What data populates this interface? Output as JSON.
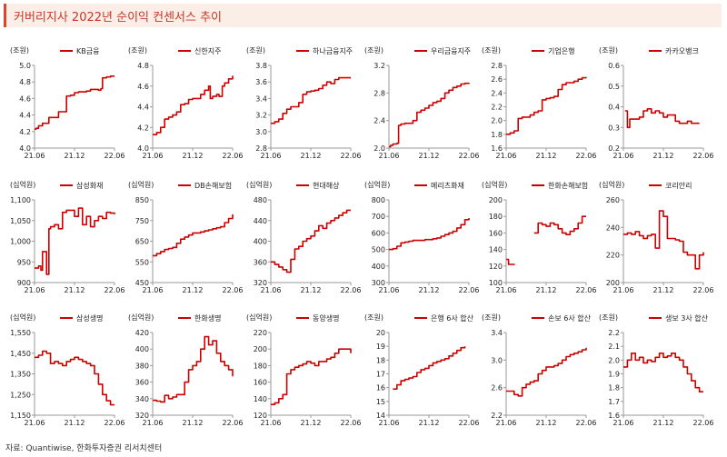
{
  "title": "커버리지사 2022년 순이익 컨센서스 추이",
  "source": "자료: Quantiwise, 한화투자증권 리서치센터",
  "colors": {
    "line": "#cc0000",
    "title_text": "#c7372a",
    "title_bg": "#fbeee6",
    "accent": "#d8462b",
    "axis": "#9a9a9a",
    "text": "#222222"
  },
  "chart_data": [
    {
      "type": "line",
      "name": "KB금융",
      "unit": "(조원)",
      "xticks": [
        "21.06",
        "21.12",
        "22.06"
      ],
      "ylim": [
        4.0,
        5.0
      ],
      "yticks": [
        "4.0",
        "4.2",
        "4.4",
        "4.6",
        "4.8",
        "5.0"
      ],
      "x": [
        0,
        0.02,
        0.05,
        0.1,
        0.18,
        0.22,
        0.25,
        0.3,
        0.4,
        0.45,
        0.5,
        0.55,
        0.6,
        0.65,
        0.7,
        0.75,
        0.8,
        0.83,
        0.85,
        0.9,
        0.95,
        1.0
      ],
      "y": [
        4.23,
        4.24,
        4.27,
        4.3,
        4.37,
        4.37,
        4.37,
        4.44,
        4.63,
        4.64,
        4.67,
        4.68,
        4.68,
        4.69,
        4.71,
        4.71,
        4.7,
        4.72,
        4.85,
        4.86,
        4.87,
        4.87
      ]
    },
    {
      "type": "line",
      "name": "신한지주",
      "unit": "(조원)",
      "xticks": [
        "21.06",
        "21.12",
        "22.06"
      ],
      "ylim": [
        4.0,
        4.8
      ],
      "yticks": [
        "4.0",
        "4.2",
        "4.4",
        "4.6",
        "4.8"
      ],
      "x": [
        0,
        0.05,
        0.1,
        0.15,
        0.2,
        0.25,
        0.3,
        0.35,
        0.4,
        0.45,
        0.5,
        0.55,
        0.6,
        0.65,
        0.7,
        0.72,
        0.75,
        0.8,
        0.83,
        0.87,
        0.9,
        0.95,
        1.0
      ],
      "y": [
        4.13,
        4.15,
        4.2,
        4.28,
        4.3,
        4.32,
        4.35,
        4.42,
        4.43,
        4.47,
        4.48,
        4.48,
        4.52,
        4.56,
        4.6,
        4.48,
        4.5,
        4.52,
        4.5,
        4.6,
        4.63,
        4.67,
        4.7
      ]
    },
    {
      "type": "line",
      "name": "하나금융지주",
      "unit": "(조원)",
      "xticks": [
        "21.06",
        "21.12",
        "22.06"
      ],
      "ylim": [
        2.8,
        3.8
      ],
      "yticks": [
        "2.8",
        "3.0",
        "3.2",
        "3.4",
        "3.6",
        "3.8"
      ],
      "x": [
        0,
        0.05,
        0.1,
        0.15,
        0.2,
        0.25,
        0.3,
        0.35,
        0.4,
        0.45,
        0.5,
        0.55,
        0.6,
        0.65,
        0.7,
        0.75,
        0.8,
        0.85,
        0.9,
        0.95,
        1.0
      ],
      "y": [
        3.1,
        3.12,
        3.15,
        3.22,
        3.27,
        3.3,
        3.3,
        3.35,
        3.45,
        3.48,
        3.49,
        3.5,
        3.52,
        3.56,
        3.6,
        3.58,
        3.63,
        3.65,
        3.65,
        3.65,
        3.65
      ]
    },
    {
      "type": "line",
      "name": "우리금융지주",
      "unit": "(조원)",
      "xticks": [
        "21.06",
        "21.12",
        "22.06"
      ],
      "ylim": [
        2.0,
        3.2
      ],
      "yticks": [
        "2.0",
        "2.4",
        "2.8",
        "3.2"
      ],
      "x": [
        0,
        0.02,
        0.05,
        0.1,
        0.12,
        0.15,
        0.2,
        0.3,
        0.35,
        0.4,
        0.45,
        0.5,
        0.55,
        0.6,
        0.65,
        0.7,
        0.75,
        0.8,
        0.85,
        0.9,
        0.95,
        1.0
      ],
      "y": [
        2.02,
        2.04,
        2.06,
        2.07,
        2.33,
        2.35,
        2.36,
        2.4,
        2.52,
        2.55,
        2.58,
        2.62,
        2.66,
        2.68,
        2.72,
        2.8,
        2.84,
        2.88,
        2.9,
        2.93,
        2.94,
        2.95
      ]
    },
    {
      "type": "line",
      "name": "기업은행",
      "unit": "(조원)",
      "xticks": [
        "21.06",
        "21.12",
        "22.06"
      ],
      "ylim": [
        1.6,
        2.8
      ],
      "yticks": [
        "1.6",
        "1.8",
        "2.0",
        "2.2",
        "2.4",
        "2.6",
        "2.8"
      ],
      "x": [
        0,
        0.05,
        0.1,
        0.15,
        0.2,
        0.25,
        0.3,
        0.35,
        0.4,
        0.45,
        0.5,
        0.55,
        0.6,
        0.65,
        0.7,
        0.75,
        0.8,
        0.85,
        0.9,
        0.95,
        1.0
      ],
      "y": [
        1.8,
        1.82,
        1.85,
        2.03,
        2.05,
        2.05,
        2.08,
        2.12,
        2.14,
        2.3,
        2.32,
        2.33,
        2.35,
        2.45,
        2.52,
        2.55,
        2.55,
        2.57,
        2.6,
        2.62,
        2.63
      ]
    },
    {
      "type": "line",
      "name": "카카오뱅크",
      "unit": "(조원)",
      "xticks": [
        "21.06",
        "21.12",
        "22.06"
      ],
      "ylim": [
        0.2,
        0.6
      ],
      "yticks": [
        "0.2",
        "0.3",
        "0.4",
        "0.5",
        "0.6"
      ],
      "x": [
        0.02,
        0.05,
        0.08,
        0.1,
        0.15,
        0.2,
        0.25,
        0.3,
        0.35,
        0.4,
        0.45,
        0.5,
        0.55,
        0.6,
        0.65,
        0.7,
        0.75,
        0.8,
        0.85,
        0.9,
        0.95
      ],
      "y": [
        0.38,
        0.3,
        0.34,
        0.34,
        0.34,
        0.35,
        0.38,
        0.39,
        0.37,
        0.38,
        0.37,
        0.35,
        0.36,
        0.36,
        0.33,
        0.32,
        0.32,
        0.33,
        0.32,
        0.32,
        0.32
      ]
    },
    {
      "type": "line",
      "name": "삼성화재",
      "unit": "(십억원)",
      "xticks": [
        "21.06",
        "21.12",
        "22.06"
      ],
      "ylim": [
        900,
        1100
      ],
      "yticks": [
        "900",
        "950",
        "1,000",
        "1,050",
        "1,100"
      ],
      "x": [
        0,
        0.05,
        0.08,
        0.1,
        0.15,
        0.18,
        0.2,
        0.25,
        0.3,
        0.35,
        0.4,
        0.45,
        0.5,
        0.55,
        0.6,
        0.65,
        0.7,
        0.75,
        0.8,
        0.85,
        0.9,
        0.95,
        1.0
      ],
      "y": [
        935,
        940,
        930,
        975,
        920,
        1030,
        1035,
        1040,
        1030,
        1070,
        1075,
        1075,
        1060,
        1080,
        1040,
        1060,
        1035,
        1050,
        1060,
        1055,
        1070,
        1068,
        1065
      ]
    },
    {
      "type": "line",
      "name": "DB손해보험",
      "unit": "(십억원)",
      "xticks": [
        "21.06",
        "21.12",
        "22.06"
      ],
      "ylim": [
        450,
        850
      ],
      "yticks": [
        "450",
        "550",
        "650",
        "750",
        "850"
      ],
      "x": [
        0,
        0.05,
        0.1,
        0.15,
        0.2,
        0.25,
        0.3,
        0.35,
        0.4,
        0.45,
        0.5,
        0.55,
        0.6,
        0.65,
        0.7,
        0.75,
        0.8,
        0.85,
        0.9,
        0.95,
        1.0
      ],
      "y": [
        580,
        590,
        600,
        610,
        615,
        620,
        640,
        660,
        670,
        680,
        690,
        690,
        695,
        700,
        705,
        710,
        715,
        720,
        740,
        760,
        780
      ]
    },
    {
      "type": "line",
      "name": "현대해상",
      "unit": "(십억원)",
      "xticks": [
        "21.06",
        "21.12",
        "22.06"
      ],
      "ylim": [
        320,
        480
      ],
      "yticks": [
        "320",
        "360",
        "400",
        "440",
        "480"
      ],
      "x": [
        0,
        0.05,
        0.1,
        0.15,
        0.2,
        0.25,
        0.3,
        0.35,
        0.4,
        0.45,
        0.5,
        0.55,
        0.6,
        0.65,
        0.7,
        0.75,
        0.8,
        0.85,
        0.9,
        0.95,
        1.0
      ],
      "y": [
        360,
        355,
        350,
        345,
        340,
        365,
        385,
        390,
        400,
        405,
        410,
        420,
        430,
        425,
        435,
        440,
        445,
        450,
        455,
        460,
        460
      ]
    },
    {
      "type": "line",
      "name": "메리츠화재",
      "unit": "(십억원)",
      "xticks": [
        "21.06",
        "21.12",
        "22.06"
      ],
      "ylim": [
        300,
        800
      ],
      "yticks": [
        "300",
        "400",
        "500",
        "600",
        "700",
        "800"
      ],
      "x": [
        0,
        0.05,
        0.1,
        0.15,
        0.2,
        0.25,
        0.3,
        0.35,
        0.4,
        0.45,
        0.5,
        0.55,
        0.6,
        0.65,
        0.7,
        0.75,
        0.8,
        0.85,
        0.9,
        0.95,
        1.0
      ],
      "y": [
        500,
        505,
        520,
        540,
        545,
        550,
        555,
        555,
        555,
        560,
        560,
        565,
        570,
        580,
        590,
        600,
        610,
        630,
        650,
        680,
        690
      ]
    },
    {
      "type": "line",
      "name": "한화손해보험",
      "unit": "(십억원)",
      "xticks": [
        "21.06",
        "21.12",
        "22.06"
      ],
      "ylim": [
        100,
        200
      ],
      "yticks": [
        "100",
        "120",
        "140",
        "160",
        "180",
        "200"
      ],
      "segments": [
        {
          "x": [
            0,
            0.03,
            0.05,
            0.1
          ],
          "y": [
            128,
            122,
            122,
            121
          ]
        },
        {
          "x": [
            0.35,
            0.4,
            0.45,
            0.5,
            0.55,
            0.6,
            0.65,
            0.7,
            0.75,
            0.8,
            0.85,
            0.9,
            0.95,
            1.0
          ],
          "y": [
            160,
            172,
            170,
            168,
            172,
            170,
            165,
            160,
            158,
            162,
            165,
            172,
            180,
            180
          ]
        }
      ]
    },
    {
      "type": "line",
      "name": "코리안리",
      "unit": "(십억원)",
      "xticks": [
        "21.06",
        "21.12",
        "22.06"
      ],
      "ylim": [
        200,
        260
      ],
      "yticks": [
        "200",
        "220",
        "240",
        "260"
      ],
      "x": [
        0,
        0.05,
        0.1,
        0.15,
        0.2,
        0.25,
        0.3,
        0.35,
        0.4,
        0.45,
        0.5,
        0.55,
        0.6,
        0.65,
        0.7,
        0.75,
        0.8,
        0.85,
        0.9,
        0.95,
        1.0
      ],
      "y": [
        235,
        236,
        235,
        237,
        234,
        232,
        234,
        235,
        225,
        252,
        248,
        232,
        232,
        231,
        230,
        222,
        220,
        220,
        210,
        220,
        222
      ]
    },
    {
      "type": "line",
      "name": "삼성생명",
      "unit": "(십억원)",
      "xticks": [
        "21.06",
        "21.12",
        "22.06"
      ],
      "ylim": [
        1150,
        1550
      ],
      "yticks": [
        "1,150",
        "1,250",
        "1,350",
        "1,450",
        "1,550"
      ],
      "x": [
        0,
        0.05,
        0.1,
        0.15,
        0.2,
        0.25,
        0.3,
        0.35,
        0.4,
        0.45,
        0.5,
        0.55,
        0.6,
        0.65,
        0.7,
        0.75,
        0.8,
        0.85,
        0.9,
        0.95,
        1.0
      ],
      "y": [
        1430,
        1440,
        1460,
        1450,
        1400,
        1410,
        1400,
        1390,
        1410,
        1420,
        1430,
        1420,
        1410,
        1400,
        1390,
        1350,
        1300,
        1250,
        1220,
        1200,
        1200
      ]
    },
    {
      "type": "line",
      "name": "한화생명",
      "unit": "(십억원)",
      "xticks": [
        "21.06",
        "21.12",
        "22.06"
      ],
      "ylim": [
        320,
        420
      ],
      "yticks": [
        "320",
        "340",
        "360",
        "380",
        "400",
        "420"
      ],
      "x": [
        0,
        0.05,
        0.1,
        0.15,
        0.2,
        0.25,
        0.3,
        0.35,
        0.4,
        0.45,
        0.5,
        0.55,
        0.6,
        0.65,
        0.7,
        0.75,
        0.8,
        0.85,
        0.9,
        0.95,
        1.0
      ],
      "y": [
        338,
        337,
        336,
        344,
        340,
        342,
        345,
        345,
        360,
        375,
        380,
        385,
        400,
        415,
        405,
        410,
        395,
        385,
        380,
        375,
        367
      ]
    },
    {
      "type": "line",
      "name": "동양생명",
      "unit": "(십억원)",
      "xticks": [
        "21.06",
        "21.12",
        "22.06"
      ],
      "ylim": [
        120,
        220
      ],
      "yticks": [
        "120",
        "140",
        "160",
        "180",
        "200",
        "220"
      ],
      "x": [
        0,
        0.05,
        0.1,
        0.15,
        0.2,
        0.25,
        0.3,
        0.35,
        0.4,
        0.45,
        0.5,
        0.55,
        0.6,
        0.65,
        0.7,
        0.75,
        0.8,
        0.85,
        0.9,
        0.95,
        1.0
      ],
      "y": [
        133,
        135,
        140,
        145,
        170,
        175,
        178,
        180,
        182,
        185,
        183,
        180,
        185,
        185,
        188,
        190,
        195,
        200,
        200,
        200,
        195
      ]
    },
    {
      "type": "line",
      "name": "은행 6사 합산",
      "unit": "(조원)",
      "xticks": [
        "21.06",
        "21.12",
        "22.06"
      ],
      "ylim": [
        14,
        20
      ],
      "yticks": [
        "14",
        "15",
        "16",
        "17",
        "18",
        "19",
        "20"
      ],
      "x": [
        0.05,
        0.1,
        0.15,
        0.2,
        0.25,
        0.3,
        0.35,
        0.4,
        0.45,
        0.5,
        0.55,
        0.6,
        0.65,
        0.7,
        0.75,
        0.8,
        0.85,
        0.9,
        0.95
      ],
      "y": [
        15.9,
        16.2,
        16.5,
        16.6,
        16.7,
        16.8,
        17.1,
        17.3,
        17.4,
        17.6,
        17.8,
        17.9,
        18.0,
        18.1,
        18.3,
        18.5,
        18.7,
        18.9,
        19.0
      ]
    },
    {
      "type": "line",
      "name": "손보 6사 합산",
      "unit": "(조원)",
      "xticks": [
        "21.06",
        "21.12",
        "22.06"
      ],
      "ylim": [
        2.2,
        3.4
      ],
      "yticks": [
        "2.2",
        "2.6",
        "3.0",
        "3.4"
      ],
      "x": [
        0,
        0.05,
        0.1,
        0.15,
        0.2,
        0.25,
        0.3,
        0.35,
        0.4,
        0.45,
        0.5,
        0.55,
        0.6,
        0.65,
        0.7,
        0.75,
        0.8,
        0.85,
        0.9,
        0.95,
        1.0
      ],
      "y": [
        2.55,
        2.55,
        2.5,
        2.48,
        2.6,
        2.65,
        2.68,
        2.7,
        2.8,
        2.85,
        2.9,
        2.9,
        2.92,
        2.95,
        3.0,
        3.05,
        3.08,
        3.1,
        3.12,
        3.15,
        3.18
      ]
    },
    {
      "type": "line",
      "name": "생보 3사 합산",
      "unit": "(조원)",
      "xticks": [
        "21.06",
        "21.12",
        "22.06"
      ],
      "ylim": [
        1.6,
        2.2
      ],
      "yticks": [
        "1.6",
        "1.7",
        "1.8",
        "1.9",
        "2.0",
        "2.1",
        "2.2"
      ],
      "x": [
        0,
        0.05,
        0.1,
        0.15,
        0.2,
        0.25,
        0.3,
        0.35,
        0.4,
        0.45,
        0.5,
        0.55,
        0.6,
        0.65,
        0.7,
        0.75,
        0.8,
        0.85,
        0.9,
        0.95,
        1.0
      ],
      "y": [
        1.95,
        2.0,
        2.05,
        2.0,
        2.02,
        1.98,
        2.0,
        1.99,
        2.02,
        2.05,
        2.02,
        2.03,
        2.05,
        2.02,
        2.0,
        1.95,
        1.9,
        1.85,
        1.8,
        1.77,
        1.77
      ]
    }
  ]
}
